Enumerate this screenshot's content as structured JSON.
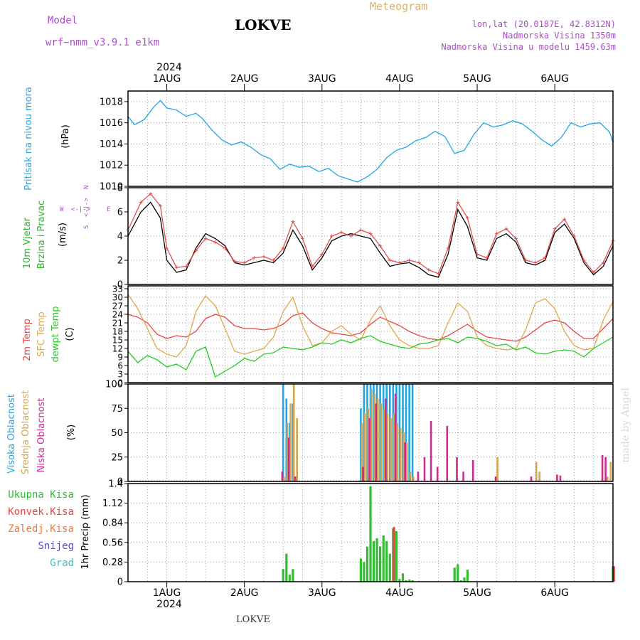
{
  "header": {
    "model_label": "Model",
    "model_name": "wrf−nmm_v3.9.1  e1km",
    "station": "LOKVE",
    "title": "Meteogram",
    "coords": "lon,lat (20.0187E, 42.8312N)",
    "elevation": "Nadmorska Visina 1350m",
    "model_elevation": "Nadmorska Visina u modelu 1459.63m",
    "watermark": "made by Angel",
    "footer_station": "LOKVE"
  },
  "colors": {
    "pressure": "#1ea7e6",
    "wind_title": "#22bb22",
    "wind_speed": "#000000",
    "wind_gust": "#e05050",
    "temp_2m": "#e84545",
    "temp_sfc": "#e0a84a",
    "dewpoint": "#22cc22",
    "cloud_high": "#1ea7e6",
    "cloud_mid": "#d6a54a",
    "cloud_low": "#cc2c8e",
    "precip_total": "#33bb33",
    "precip_conv": "#e84545",
    "precip_frz": "#f07a38",
    "precip_snow": "#5050d0",
    "precip_grad": "#3fc0c0",
    "direction_labels": "#b04ad0",
    "grid": "#888888"
  },
  "time_axis": {
    "year": "2024",
    "days": [
      "1AUG",
      "2AUG",
      "3AUG",
      "4AUG",
      "5AUG",
      "6AUG"
    ],
    "start_offset_hours": -12,
    "end_offset_hours": 138
  },
  "chart_data": [
    {
      "type": "line",
      "id": "pressure",
      "ylabel": "Pritisak na nivou mora",
      "unit": "(hPa)",
      "ylim": [
        1010,
        1019
      ],
      "yticks": [
        1010,
        1012,
        1014,
        1016,
        1018
      ],
      "grid": true,
      "series": [
        {
          "color_key": "pressure",
          "x": [
            -12,
            -10,
            -7,
            -4,
            -2,
            0,
            3,
            6,
            9,
            11,
            14,
            17,
            20,
            23,
            26,
            29,
            32,
            35,
            38,
            41,
            44,
            47,
            50,
            53,
            56,
            59,
            62,
            65,
            68,
            71,
            74,
            77,
            80,
            83,
            86,
            89,
            92,
            95,
            98,
            101,
            104,
            107,
            110,
            113,
            116,
            119,
            122,
            125,
            128,
            131,
            134,
            137,
            138
          ],
          "y": [
            1016.6,
            1015.8,
            1016.3,
            1017.5,
            1018.1,
            1017.4,
            1017.2,
            1016.6,
            1016.9,
            1016.4,
            1015.3,
            1014.4,
            1013.9,
            1014.2,
            1013.7,
            1013.0,
            1012.6,
            1011.6,
            1012.1,
            1011.8,
            1011.9,
            1011.4,
            1011.7,
            1011.0,
            1010.7,
            1010.4,
            1010.9,
            1011.6,
            1012.7,
            1013.4,
            1013.7,
            1014.3,
            1014.6,
            1015.2,
            1014.7,
            1013.1,
            1013.4,
            1014.9,
            1016.0,
            1015.6,
            1015.8,
            1016.2,
            1015.9,
            1015.2,
            1014.4,
            1013.8,
            1014.6,
            1016.0,
            1015.6,
            1015.9,
            1016.0,
            1015.1,
            1014.1
          ]
        }
      ]
    },
    {
      "type": "line",
      "id": "wind",
      "ylabel": "10m Vjetar",
      "ylabel2": "Brzina i Pravac",
      "unit": "(m/s)",
      "ylim": [
        0,
        8
      ],
      "yticks": [
        0,
        2,
        4,
        6,
        8
      ],
      "direction_labels": [
        "N",
        "S",
        "W",
        "E"
      ],
      "grid": true,
      "series": [
        {
          "name": "speed",
          "color_key": "wind_speed",
          "x": [
            -12,
            -8,
            -5,
            -2,
            0,
            3,
            6,
            9,
            12,
            15,
            18,
            21,
            24,
            27,
            30,
            33,
            36,
            39,
            42,
            45,
            48,
            51,
            54,
            57,
            60,
            63,
            66,
            69,
            72,
            75,
            78,
            81,
            84,
            87,
            90,
            93,
            96,
            99,
            102,
            105,
            108,
            111,
            114,
            117,
            120,
            123,
            126,
            129,
            132,
            135,
            138
          ],
          "y": [
            4.0,
            6.0,
            6.8,
            5.5,
            2.0,
            1.0,
            1.2,
            3.0,
            4.2,
            3.8,
            3.2,
            1.8,
            1.6,
            1.8,
            2.0,
            1.8,
            2.6,
            4.5,
            3.2,
            1.2,
            2.2,
            3.6,
            4.0,
            4.2,
            4.0,
            3.8,
            2.6,
            1.5,
            1.7,
            1.8,
            1.4,
            0.8,
            0.6,
            2.5,
            6.2,
            4.8,
            2.2,
            2.0,
            3.8,
            4.2,
            3.5,
            1.8,
            1.6,
            2.0,
            4.3,
            5.0,
            3.8,
            1.8,
            0.8,
            1.5,
            3.2
          ]
        },
        {
          "name": "gust",
          "color_key": "wind_gust",
          "x": [
            -12,
            -8,
            -5,
            -2,
            0,
            3,
            6,
            9,
            12,
            15,
            18,
            21,
            24,
            27,
            30,
            33,
            36,
            39,
            42,
            45,
            48,
            51,
            54,
            57,
            60,
            63,
            66,
            69,
            72,
            75,
            78,
            81,
            84,
            87,
            90,
            93,
            96,
            99,
            102,
            105,
            108,
            111,
            114,
            117,
            120,
            123,
            126,
            129,
            132,
            135,
            138
          ],
          "y": [
            4.5,
            6.8,
            7.5,
            6.5,
            3.0,
            1.4,
            1.5,
            2.8,
            3.8,
            3.5,
            3.0,
            1.9,
            1.8,
            2.2,
            2.3,
            2.0,
            3.0,
            5.2,
            3.8,
            1.5,
            2.5,
            4.0,
            4.3,
            4.0,
            4.5,
            4.2,
            3.2,
            2.0,
            1.8,
            2.0,
            1.8,
            1.2,
            0.9,
            3.0,
            6.8,
            5.5,
            2.5,
            2.2,
            4.2,
            4.6,
            3.8,
            2.0,
            1.8,
            2.2,
            4.6,
            5.4,
            4.0,
            2.0,
            1.0,
            1.8,
            3.6
          ]
        }
      ]
    },
    {
      "type": "line",
      "id": "temperature",
      "ylabel": "2m Temp",
      "ylabel2": "SFC Temp",
      "ylabel3": "dewpt Temp",
      "unit": "(C)",
      "ylim": [
        0,
        34
      ],
      "yticks": [
        0,
        3,
        6,
        9,
        12,
        15,
        18,
        21,
        24,
        27,
        30,
        33
      ],
      "grid": true,
      "series": [
        {
          "name": "2m",
          "color_key": "temp_2m",
          "x": [
            -12,
            -9,
            -6,
            -3,
            0,
            3,
            6,
            9,
            12,
            15,
            18,
            21,
            24,
            27,
            30,
            33,
            36,
            39,
            42,
            45,
            48,
            51,
            54,
            57,
            60,
            63,
            66,
            69,
            72,
            75,
            78,
            81,
            84,
            87,
            90,
            93,
            96,
            99,
            102,
            105,
            108,
            111,
            114,
            117,
            120,
            123,
            126,
            129,
            132,
            135,
            138
          ],
          "y": [
            24.0,
            23.0,
            21.0,
            17.0,
            15.5,
            16.5,
            16.0,
            18.0,
            22.5,
            24.0,
            23.0,
            20.0,
            19.0,
            19.0,
            18.5,
            19.0,
            20.5,
            23.5,
            24.5,
            21.0,
            19.0,
            17.5,
            17.0,
            16.5,
            17.5,
            20.5,
            23.0,
            21.5,
            20.0,
            18.0,
            16.5,
            15.5,
            15.0,
            16.5,
            18.5,
            20.5,
            18.0,
            16.0,
            15.5,
            15.0,
            14.5,
            16.0,
            18.5,
            21.0,
            22.0,
            21.0,
            18.0,
            15.5,
            15.5,
            19.0,
            22.5
          ]
        },
        {
          "name": "sfc",
          "color_key": "temp_sfc",
          "x": [
            -12,
            -9,
            -6,
            -3,
            0,
            3,
            6,
            9,
            12,
            15,
            18,
            21,
            24,
            27,
            30,
            33,
            36,
            39,
            42,
            45,
            48,
            51,
            54,
            57,
            60,
            63,
            66,
            69,
            72,
            75,
            78,
            81,
            84,
            87,
            90,
            93,
            96,
            99,
            102,
            105,
            108,
            111,
            114,
            117,
            120,
            123,
            126,
            129,
            132,
            135,
            138
          ],
          "y": [
            31.0,
            26.0,
            19.0,
            12.0,
            10.0,
            9.0,
            13.0,
            25.0,
            30.5,
            27.0,
            19.0,
            11.0,
            10.0,
            11.0,
            12.0,
            16.0,
            25.0,
            30.0,
            20.0,
            13.0,
            14.0,
            18.0,
            20.0,
            17.0,
            15.0,
            22.0,
            27.0,
            20.0,
            15.0,
            13.0,
            12.0,
            12.0,
            13.0,
            21.0,
            28.0,
            25.0,
            16.0,
            13.0,
            12.0,
            11.5,
            12.0,
            18.5,
            28.0,
            29.5,
            26.0,
            18.0,
            13.0,
            11.5,
            12.0,
            22.0,
            28.5
          ]
        },
        {
          "name": "dewpoint",
          "color_key": "dewpoint",
          "x": [
            -12,
            -9,
            -6,
            -3,
            0,
            3,
            6,
            9,
            12,
            15,
            18,
            21,
            24,
            27,
            30,
            33,
            36,
            39,
            42,
            45,
            48,
            51,
            54,
            57,
            60,
            63,
            66,
            69,
            72,
            75,
            78,
            81,
            84,
            87,
            90,
            93,
            96,
            99,
            102,
            105,
            108,
            111,
            114,
            117,
            120,
            123,
            126,
            129,
            132,
            135,
            138
          ],
          "y": [
            11.0,
            7.0,
            9.5,
            8.0,
            5.5,
            6.5,
            4.5,
            11.0,
            12.5,
            2.0,
            4.0,
            6.0,
            8.5,
            7.5,
            10.0,
            10.5,
            12.5,
            12.0,
            11.5,
            12.5,
            14.0,
            13.5,
            15.0,
            14.0,
            15.5,
            16.5,
            14.5,
            13.5,
            12.5,
            12.0,
            13.5,
            14.0,
            15.0,
            15.5,
            14.0,
            16.0,
            15.5,
            14.5,
            13.0,
            13.5,
            11.5,
            12.5,
            10.5,
            10.0,
            11.0,
            11.5,
            11.0,
            9.0,
            12.0,
            14.0,
            16.0
          ]
        }
      ]
    },
    {
      "type": "bar",
      "id": "clouds",
      "ylabel": "Visoka Oblacnost",
      "ylabel2": "Srednja Oblacnost",
      "ylabel3": "Niska Oblacnost",
      "unit": "(%)",
      "ylim": [
        0,
        100
      ],
      "yticks": [
        0,
        25,
        50,
        75,
        100
      ],
      "grid": true,
      "series": [
        {
          "name": "high",
          "color_key": "cloud_high",
          "x": [
            36,
            37,
            38,
            39,
            60,
            61,
            62,
            63,
            64,
            65,
            66,
            67,
            68,
            69,
            70,
            71,
            72,
            73,
            74,
            75,
            76
          ],
          "y": [
            100,
            85,
            60,
            80,
            75,
            100,
            100,
            100,
            100,
            100,
            100,
            100,
            100,
            100,
            100,
            100,
            100,
            100,
            100,
            100,
            100
          ]
        },
        {
          "name": "mid",
          "color_key": "cloud_mid",
          "x": [
            36,
            37,
            38,
            39,
            40,
            60,
            61,
            62,
            63,
            64,
            65,
            66,
            67,
            68,
            69,
            70,
            71,
            72,
            73,
            74,
            75,
            76,
            102,
            114,
            115,
            136,
            137
          ],
          "y": [
            5,
            60,
            80,
            100,
            65,
            60,
            70,
            75,
            95,
            90,
            85,
            80,
            75,
            70,
            65,
            70,
            60,
            55,
            50,
            40,
            10,
            5,
            25,
            20,
            10,
            5,
            20
          ]
        },
        {
          "name": "low",
          "color_key": "cloud_low",
          "x": [
            36,
            38,
            40,
            61,
            63,
            65,
            68,
            71,
            74,
            78,
            80,
            82,
            84,
            87,
            90,
            92,
            95,
            102,
            113,
            121,
            122,
            135,
            136
          ],
          "y": [
            10,
            45,
            5,
            15,
            65,
            80,
            85,
            90,
            40,
            10,
            25,
            62,
            15,
            57,
            25,
            10,
            22,
            5,
            5,
            7,
            6,
            27,
            25
          ]
        }
      ]
    },
    {
      "type": "bar",
      "id": "precip",
      "ylabel": "1hr Precip",
      "unit": "(mm)",
      "legend": [
        "Ukupna  Kisa",
        "Konvek.Kisa",
        "Zaledj.Kisa",
        "Snijeg",
        "Grad"
      ],
      "legend_color_keys": [
        "precip_total",
        "precip_conv",
        "precip_frz",
        "precip_snow",
        "precip_grad"
      ],
      "ylim": [
        0,
        1.4
      ],
      "yticks": [
        0,
        0.28,
        0.56,
        0.84,
        1.12,
        1.4
      ],
      "ytick_labels": [
        "0",
        "0.28",
        "0.56",
        "0.84",
        "1.12",
        "1.4"
      ],
      "grid": true,
      "series": [
        {
          "name": "total",
          "color_key": "precip_total",
          "x": [
            36,
            37,
            38,
            39,
            60,
            61,
            62,
            63,
            64,
            65,
            66,
            67,
            68,
            69,
            70,
            71,
            72,
            73,
            74,
            75,
            76,
            89,
            90,
            91,
            92,
            93,
            138
          ],
          "y": [
            0.18,
            0.4,
            0.1,
            0.18,
            0.33,
            0.28,
            0.5,
            1.36,
            0.58,
            0.62,
            0.5,
            0.66,
            0.58,
            0.4,
            0.76,
            0.72,
            0.04,
            0.12,
            0.02,
            0.03,
            0.02,
            0.2,
            0.25,
            0.02,
            0.06,
            0.17,
            0.22
          ]
        },
        {
          "name": "conv",
          "color_key": "precip_conv",
          "x": [
            70,
            138
          ],
          "y": [
            0.78,
            0.22
          ]
        }
      ]
    }
  ]
}
